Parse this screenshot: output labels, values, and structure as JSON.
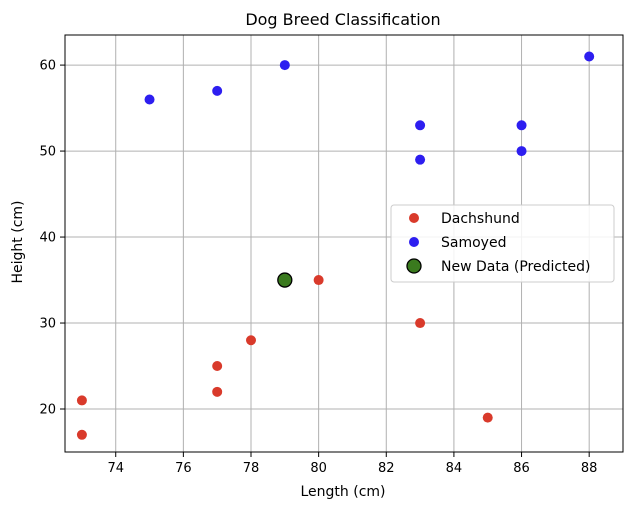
{
  "chart_data": {
    "type": "scatter",
    "title": "Dog Breed Classification",
    "xlabel": "Length (cm)",
    "ylabel": "Height (cm)",
    "xlim": [
      72.5,
      89.0
    ],
    "ylim": [
      15.0,
      63.5
    ],
    "xticks": [
      74,
      76,
      78,
      80,
      82,
      84,
      86,
      88
    ],
    "yticks": [
      20,
      30,
      40,
      50,
      60
    ],
    "grid": true,
    "legend_position": "center-right",
    "series": [
      {
        "name": "Dachshund",
        "color": "#d93a2b",
        "points": [
          [
            73,
            17
          ],
          [
            73,
            21
          ],
          [
            77,
            22
          ],
          [
            77,
            25
          ],
          [
            78,
            28
          ],
          [
            80,
            35
          ],
          [
            83,
            30
          ],
          [
            85,
            19
          ]
        ]
      },
      {
        "name": "Samoyed",
        "color": "#2d1ef0",
        "points": [
          [
            75,
            56
          ],
          [
            77,
            57
          ],
          [
            79,
            60
          ],
          [
            83,
            53
          ],
          [
            83,
            49
          ],
          [
            86,
            53
          ],
          [
            86,
            50
          ],
          [
            88,
            61
          ]
        ]
      },
      {
        "name": "New Data (Predicted)",
        "color": "#3a7a1e",
        "edge_color": "#000000",
        "points": [
          [
            79,
            35
          ]
        ]
      }
    ]
  }
}
